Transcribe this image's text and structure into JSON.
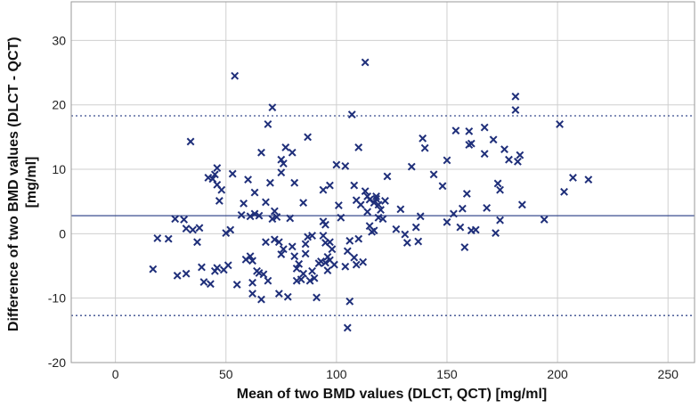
{
  "chart_data": {
    "type": "scatter",
    "xlabel": "Mean of two BMD values (DLCT, QCT) [mg/ml]",
    "ylabel_line1": "Difference of two BMD values (DLCT - QCT)",
    "ylabel_line2": "[mg/ml]",
    "xlim": [
      -20,
      262
    ],
    "ylim": [
      -20,
      36
    ],
    "x_ticks": [
      0,
      50,
      100,
      150,
      200,
      250
    ],
    "y_ticks": [
      -20,
      -10,
      0,
      10,
      20,
      30
    ],
    "grid": true,
    "mean_line": 2.8,
    "upper_limit": 18.3,
    "lower_limit": -12.7,
    "colors": {
      "marker": "#1f2f7a",
      "mean_line": "#3a4d8f",
      "limit_line": "#3a4d8f",
      "grid": "#cfcfcf",
      "frame": "#9a9a9a"
    },
    "points": [
      [
        17,
        -5.5
      ],
      [
        19,
        -0.7
      ],
      [
        24,
        -0.8
      ],
      [
        27,
        2.3
      ],
      [
        28,
        -6.5
      ],
      [
        31,
        2.2
      ],
      [
        32,
        0.8
      ],
      [
        32,
        -6.2
      ],
      [
        34,
        14.3
      ],
      [
        35,
        0.6
      ],
      [
        37,
        -1.3
      ],
      [
        38,
        0.9
      ],
      [
        39,
        -5.2
      ],
      [
        40,
        -7.5
      ],
      [
        42,
        8.7
      ],
      [
        43,
        -7.8
      ],
      [
        44,
        8.5
      ],
      [
        45,
        -5.8
      ],
      [
        45,
        9.2
      ],
      [
        46,
        -5.3
      ],
      [
        46,
        10.2
      ],
      [
        46,
        7.6
      ],
      [
        47,
        5.1
      ],
      [
        48,
        6.8
      ],
      [
        49,
        -5.6
      ],
      [
        50,
        0.1
      ],
      [
        51,
        -4.9
      ],
      [
        52,
        0.6
      ],
      [
        53,
        9.3
      ],
      [
        54,
        24.5
      ],
      [
        55,
        -7.9
      ],
      [
        57,
        2.9
      ],
      [
        58,
        4.7
      ],
      [
        59,
        -4.0
      ],
      [
        60,
        8.4
      ],
      [
        61,
        2.7
      ],
      [
        61,
        -3.5
      ],
      [
        62,
        -4.2
      ],
      [
        62,
        -7.6
      ],
      [
        62,
        -9.3
      ],
      [
        63,
        3.1
      ],
      [
        63,
        6.4
      ],
      [
        64,
        -5.8
      ],
      [
        65,
        2.8
      ],
      [
        65,
        -6.1
      ],
      [
        66,
        12.6
      ],
      [
        66,
        -10.2
      ],
      [
        67,
        -6.3
      ],
      [
        68,
        4.9
      ],
      [
        68,
        -1.3
      ],
      [
        69,
        17.0
      ],
      [
        69,
        -7.3
      ],
      [
        70,
        7.9
      ],
      [
        71,
        2.3
      ],
      [
        71,
        19.6
      ],
      [
        72,
        3.5
      ],
      [
        72,
        -0.9
      ],
      [
        73,
        2.6
      ],
      [
        74,
        -9.3
      ],
      [
        74,
        -1.3
      ],
      [
        75,
        9.5
      ],
      [
        75,
        11.5
      ],
      [
        75,
        -3.2
      ],
      [
        76,
        10.9
      ],
      [
        76,
        -2.4
      ],
      [
        77,
        13.4
      ],
      [
        78,
        -9.8
      ],
      [
        79,
        2.4
      ],
      [
        80,
        -2.0
      ],
      [
        80,
        12.6
      ],
      [
        81,
        7.9
      ],
      [
        81,
        -3.5
      ],
      [
        82,
        -5.4
      ],
      [
        82,
        -7.3
      ],
      [
        83,
        -4.7
      ],
      [
        84,
        -7.1
      ],
      [
        85,
        4.8
      ],
      [
        85,
        -6.2
      ],
      [
        86,
        -1.6
      ],
      [
        86,
        -3.1
      ],
      [
        87,
        15.0
      ],
      [
        87,
        -0.5
      ],
      [
        88,
        -7.3
      ],
      [
        89,
        -5.8
      ],
      [
        89,
        -0.3
      ],
      [
        90,
        -6.9
      ],
      [
        91,
        -9.9
      ],
      [
        92,
        -4.6
      ],
      [
        93,
        -4.3
      ],
      [
        94,
        6.8
      ],
      [
        94,
        1.9
      ],
      [
        94,
        -0.3
      ],
      [
        95,
        1.4
      ],
      [
        95,
        -1.4
      ],
      [
        95,
        -4.5
      ],
      [
        96,
        -5.7
      ],
      [
        96,
        -3.6
      ],
      [
        97,
        7.5
      ],
      [
        97,
        -1.3
      ],
      [
        97,
        -4.1
      ],
      [
        98,
        -2.4
      ],
      [
        99,
        -4.8
      ],
      [
        100,
        10.7
      ],
      [
        101,
        4.4
      ],
      [
        102,
        2.5
      ],
      [
        104,
        -5.1
      ],
      [
        104,
        10.5
      ],
      [
        105,
        -2.7
      ],
      [
        105,
        -14.6
      ],
      [
        106,
        -10.5
      ],
      [
        106,
        -1.1
      ],
      [
        107,
        18.5
      ],
      [
        108,
        7.5
      ],
      [
        108,
        -3.7
      ],
      [
        109,
        5.2
      ],
      [
        109,
        -4.8
      ],
      [
        110,
        13.4
      ],
      [
        110,
        -0.8
      ],
      [
        111,
        4.5
      ],
      [
        112,
        -4.4
      ],
      [
        113,
        26.6
      ],
      [
        113,
        6.6
      ],
      [
        114,
        5.8
      ],
      [
        114,
        3.4
      ],
      [
        115,
        5.3
      ],
      [
        115,
        1.2
      ],
      [
        116,
        0.3
      ],
      [
        117,
        0.5
      ],
      [
        117,
        4.8
      ],
      [
        118,
        5.4
      ],
      [
        118,
        5.8
      ],
      [
        119,
        4.5
      ],
      [
        119,
        2.5
      ],
      [
        120,
        3.7
      ],
      [
        121,
        2.3
      ],
      [
        122,
        5.1
      ],
      [
        123,
        8.9
      ],
      [
        127,
        0.7
      ],
      [
        129,
        3.8
      ],
      [
        131,
        -0.1
      ],
      [
        132,
        -1.4
      ],
      [
        134,
        10.4
      ],
      [
        136,
        1.0
      ],
      [
        137,
        -1.2
      ],
      [
        138,
        2.7
      ],
      [
        139,
        14.8
      ],
      [
        140,
        13.3
      ],
      [
        144,
        9.2
      ],
      [
        148,
        7.4
      ],
      [
        150,
        1.8
      ],
      [
        150,
        11.4
      ],
      [
        153,
        3.1
      ],
      [
        154,
        16.0
      ],
      [
        156,
        1.0
      ],
      [
        157,
        3.9
      ],
      [
        158,
        -2.1
      ],
      [
        159,
        6.2
      ],
      [
        160,
        13.8
      ],
      [
        160,
        15.9
      ],
      [
        161,
        14.0
      ],
      [
        161,
        0.5
      ],
      [
        163,
        0.6
      ],
      [
        167,
        16.5
      ],
      [
        167,
        12.4
      ],
      [
        168,
        4.0
      ],
      [
        171,
        14.6
      ],
      [
        172,
        0.1
      ],
      [
        173,
        7.8
      ],
      [
        174,
        6.8
      ],
      [
        174,
        2.1
      ],
      [
        176,
        13.1
      ],
      [
        178,
        11.5
      ],
      [
        181,
        19.2
      ],
      [
        181,
        21.3
      ],
      [
        182,
        11.2
      ],
      [
        183,
        12.2
      ],
      [
        184,
        4.5
      ],
      [
        194,
        2.2
      ],
      [
        201,
        17.0
      ],
      [
        203,
        6.5
      ],
      [
        207,
        8.7
      ],
      [
        214,
        8.4
      ]
    ]
  }
}
